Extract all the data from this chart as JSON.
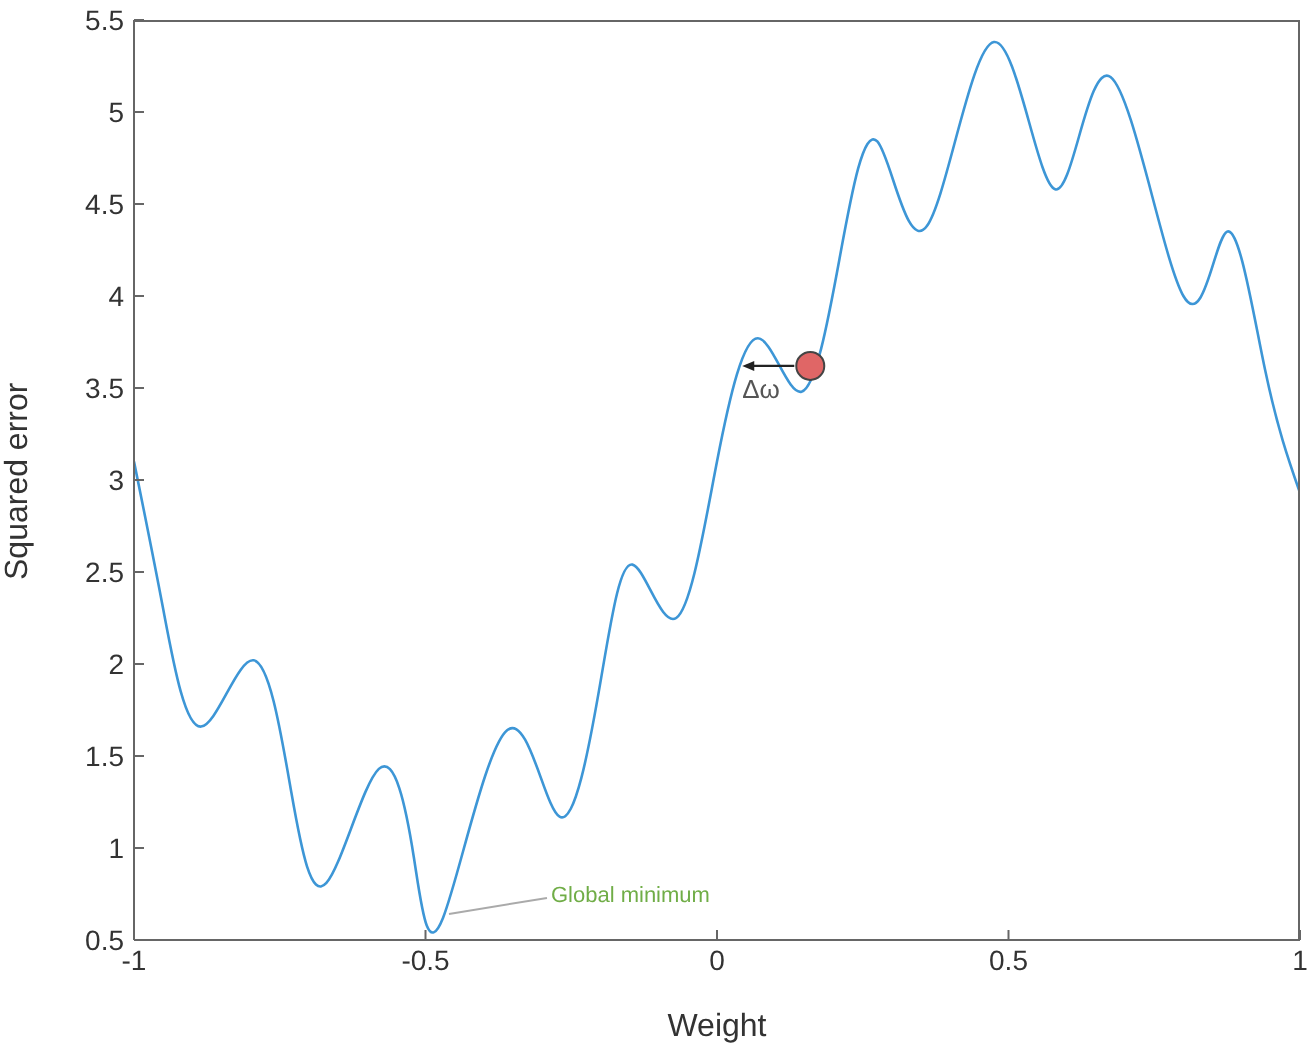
{
  "chart_data": {
    "type": "line",
    "xlabel": "Weight",
    "ylabel": "Squared error",
    "xlim": [
      -1,
      1
    ],
    "ylim": [
      0.5,
      5.5
    ],
    "xticks": [
      -1,
      -0.5,
      0,
      0.5,
      1
    ],
    "yticks": [
      0.5,
      1,
      1.5,
      2,
      2.5,
      3,
      3.5,
      4,
      4.5,
      5,
      5.5
    ],
    "grid": false,
    "legend": false,
    "annotations": [
      {
        "text": "Global minimum",
        "x": -0.47,
        "y": 0.62
      },
      {
        "text": "Δω",
        "x": 0.16,
        "y": 3.62
      }
    ],
    "series": [
      {
        "color": "#3d96d6",
        "x": [
          -1,
          -0.95,
          -0.885,
          -0.795,
          -0.73,
          -0.67,
          -0.58,
          -0.52,
          -0.47,
          -0.36,
          -0.27,
          -0.2,
          -0.145,
          -0.07,
          0,
          0.07,
          0.145,
          0.21,
          0.275,
          0.36,
          0.475,
          0.58,
          0.675,
          0.8,
          0.875,
          0.94,
          1
        ],
        "values": [
          3.1,
          2.3,
          1.66,
          2.02,
          1.3,
          0.81,
          1.43,
          0.95,
          0.62,
          1.64,
          1.17,
          1.9,
          2.54,
          2.25,
          3.1,
          3.77,
          3.48,
          4.2,
          4.84,
          4.38,
          5.38,
          4.58,
          5.19,
          4.0,
          4.35,
          3.6,
          2.93
        ]
      },
      {
        "type": "scatter",
        "color": "#e06666",
        "x": [
          0.16
        ],
        "values": [
          3.62
        ]
      }
    ]
  }
}
